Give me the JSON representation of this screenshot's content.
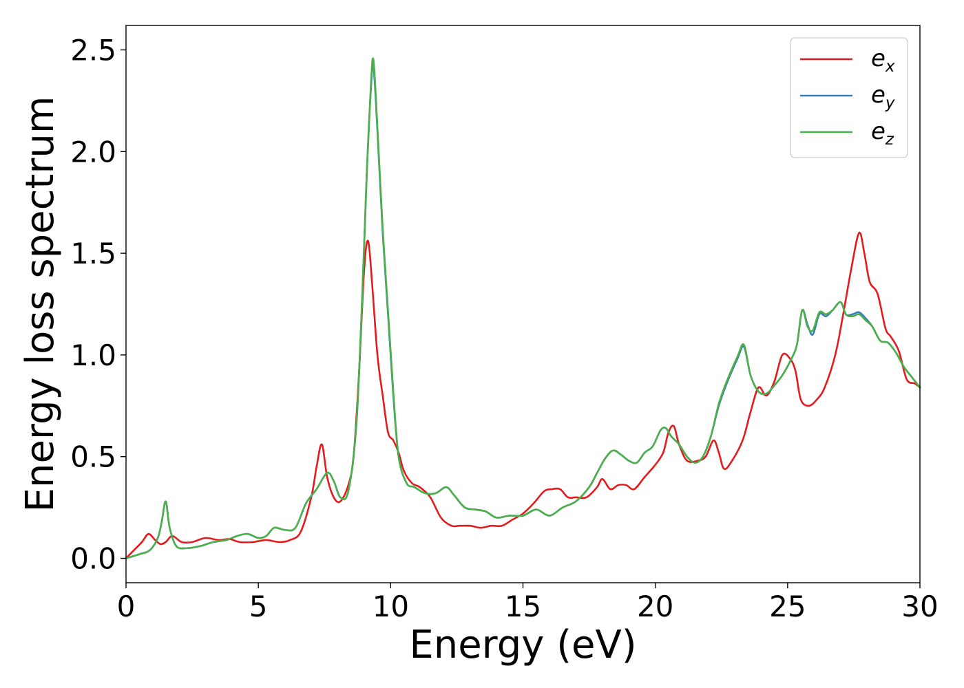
{
  "chart_data": {
    "type": "line",
    "xlabel": "Energy (eV)",
    "ylabel": "Energy loss spectrum",
    "xlim": [
      0,
      30
    ],
    "ylim": [
      -0.12,
      2.62
    ],
    "xticks": [
      "0",
      "5",
      "10",
      "15",
      "20",
      "25",
      "30"
    ],
    "yticks": [
      "0.0",
      "0.5",
      "1.0",
      "1.5",
      "2.0",
      "2.5"
    ],
    "grid": false,
    "legend_position": "top-right",
    "series": [
      {
        "name": "e_x",
        "legend_symbol": "e",
        "legend_subscript": "x",
        "color": "#e41a1c",
        "x": [
          0,
          0.3,
          0.6,
          0.85,
          1.1,
          1.3,
          1.5,
          1.75,
          2.1,
          2.5,
          3.0,
          3.5,
          3.9,
          4.3,
          4.8,
          5.3,
          5.8,
          6.2,
          6.6,
          7.0,
          7.2,
          7.4,
          7.6,
          7.85,
          8.1,
          8.4,
          8.6,
          8.8,
          9.0,
          9.15,
          9.3,
          9.5,
          9.7,
          9.9,
          10.1,
          10.3,
          10.5,
          10.8,
          11.1,
          11.5,
          11.9,
          12.3,
          12.6,
          13.0,
          13.4,
          13.8,
          14.2,
          14.6,
          15.0,
          15.4,
          15.8,
          16.1,
          16.4,
          16.7,
          17.0,
          17.4,
          17.8,
          18.0,
          18.3,
          18.6,
          18.9,
          19.2,
          19.6,
          20.0,
          20.3,
          20.5,
          20.7,
          20.9,
          21.2,
          21.6,
          21.9,
          22.2,
          22.4,
          22.6,
          22.9,
          23.3,
          23.6,
          23.9,
          24.2,
          24.5,
          24.8,
          25.1,
          25.3,
          25.5,
          25.8,
          26.1,
          26.4,
          26.8,
          27.1,
          27.4,
          27.7,
          27.9,
          28.1,
          28.4,
          28.7,
          28.9,
          29.2,
          29.5,
          29.8,
          30.0
        ],
        "y": [
          0.0,
          0.04,
          0.08,
          0.12,
          0.09,
          0.07,
          0.08,
          0.11,
          0.08,
          0.08,
          0.1,
          0.09,
          0.095,
          0.08,
          0.08,
          0.09,
          0.08,
          0.09,
          0.13,
          0.3,
          0.45,
          0.56,
          0.4,
          0.3,
          0.28,
          0.36,
          0.5,
          0.9,
          1.42,
          1.56,
          1.35,
          1.0,
          0.8,
          0.62,
          0.58,
          0.52,
          0.43,
          0.37,
          0.35,
          0.3,
          0.2,
          0.16,
          0.16,
          0.16,
          0.15,
          0.16,
          0.16,
          0.19,
          0.22,
          0.27,
          0.33,
          0.34,
          0.34,
          0.3,
          0.3,
          0.3,
          0.35,
          0.39,
          0.34,
          0.36,
          0.36,
          0.34,
          0.4,
          0.46,
          0.52,
          0.62,
          0.65,
          0.56,
          0.48,
          0.48,
          0.5,
          0.58,
          0.52,
          0.44,
          0.48,
          0.58,
          0.72,
          0.84,
          0.8,
          0.87,
          1.0,
          0.98,
          0.92,
          0.78,
          0.75,
          0.78,
          0.84,
          1.0,
          1.2,
          1.42,
          1.6,
          1.5,
          1.36,
          1.3,
          1.13,
          1.09,
          1.02,
          0.88,
          0.86,
          0.84
        ]
      },
      {
        "name": "e_y",
        "legend_symbol": "e",
        "legend_subscript": "y",
        "color": "#377eb8",
        "x": [
          0,
          0.5,
          0.9,
          1.2,
          1.35,
          1.5,
          1.65,
          1.9,
          2.3,
          2.8,
          3.3,
          3.8,
          4.2,
          4.6,
          5.0,
          5.3,
          5.6,
          6.0,
          6.4,
          6.8,
          7.2,
          7.6,
          7.85,
          8.1,
          8.4,
          8.7,
          8.9,
          9.1,
          9.25,
          9.35,
          9.5,
          9.7,
          9.9,
          10.1,
          10.3,
          10.6,
          10.9,
          11.3,
          11.7,
          12.1,
          12.4,
          12.8,
          13.2,
          13.6,
          14.0,
          14.5,
          15.0,
          15.5,
          16.0,
          16.5,
          17.0,
          17.5,
          17.8,
          18.1,
          18.4,
          18.7,
          19.0,
          19.3,
          19.6,
          19.9,
          20.2,
          20.4,
          20.6,
          20.9,
          21.2,
          21.5,
          21.8,
          22.1,
          22.4,
          22.7,
          23.1,
          23.35,
          23.6,
          23.9,
          24.2,
          24.5,
          24.8,
          25.1,
          25.35,
          25.55,
          25.75,
          25.95,
          26.2,
          26.45,
          26.7,
          27.0,
          27.2,
          27.45,
          27.7,
          27.95,
          28.2,
          28.5,
          28.8,
          29.1,
          29.4,
          29.7,
          30.0
        ],
        "y": [
          0.0,
          0.02,
          0.04,
          0.1,
          0.18,
          0.28,
          0.15,
          0.06,
          0.05,
          0.06,
          0.08,
          0.09,
          0.11,
          0.12,
          0.1,
          0.11,
          0.15,
          0.14,
          0.15,
          0.27,
          0.34,
          0.42,
          0.38,
          0.3,
          0.33,
          0.65,
          1.2,
          1.9,
          2.3,
          2.42,
          2.1,
          1.6,
          1.2,
          0.8,
          0.5,
          0.37,
          0.35,
          0.32,
          0.32,
          0.35,
          0.31,
          0.25,
          0.24,
          0.23,
          0.2,
          0.21,
          0.21,
          0.24,
          0.21,
          0.25,
          0.28,
          0.35,
          0.42,
          0.49,
          0.53,
          0.51,
          0.48,
          0.47,
          0.52,
          0.55,
          0.63,
          0.64,
          0.6,
          0.56,
          0.5,
          0.47,
          0.5,
          0.6,
          0.75,
          0.86,
          0.98,
          1.04,
          0.9,
          0.82,
          0.81,
          0.85,
          0.9,
          0.97,
          1.05,
          1.22,
          1.15,
          1.1,
          1.2,
          1.19,
          1.22,
          1.26,
          1.2,
          1.2,
          1.21,
          1.18,
          1.14,
          1.07,
          1.06,
          1.01,
          0.94,
          0.89,
          0.84
        ]
      },
      {
        "name": "e_z",
        "legend_symbol": "e",
        "legend_subscript": "z",
        "color": "#4daf4a",
        "x": [
          0,
          0.5,
          0.9,
          1.2,
          1.35,
          1.5,
          1.65,
          1.9,
          2.3,
          2.8,
          3.3,
          3.8,
          4.2,
          4.6,
          5.0,
          5.3,
          5.6,
          6.0,
          6.4,
          6.8,
          7.2,
          7.6,
          7.85,
          8.1,
          8.4,
          8.7,
          8.9,
          9.1,
          9.25,
          9.35,
          9.5,
          9.7,
          9.9,
          10.1,
          10.3,
          10.6,
          10.9,
          11.3,
          11.7,
          12.1,
          12.4,
          12.8,
          13.2,
          13.6,
          14.0,
          14.5,
          15.0,
          15.5,
          16.0,
          16.5,
          17.0,
          17.5,
          17.8,
          18.1,
          18.4,
          18.7,
          19.0,
          19.3,
          19.6,
          19.9,
          20.2,
          20.4,
          20.6,
          20.9,
          21.2,
          21.5,
          21.8,
          22.1,
          22.4,
          22.7,
          23.1,
          23.35,
          23.6,
          23.9,
          24.2,
          24.5,
          24.8,
          25.1,
          25.35,
          25.55,
          25.75,
          25.95,
          26.2,
          26.45,
          26.7,
          27.0,
          27.2,
          27.45,
          27.7,
          27.95,
          28.2,
          28.5,
          28.8,
          29.1,
          29.4,
          29.7,
          30.0
        ],
        "y": [
          0.0,
          0.02,
          0.04,
          0.1,
          0.18,
          0.28,
          0.15,
          0.06,
          0.05,
          0.06,
          0.08,
          0.09,
          0.11,
          0.12,
          0.1,
          0.11,
          0.15,
          0.14,
          0.15,
          0.27,
          0.34,
          0.42,
          0.38,
          0.3,
          0.33,
          0.65,
          1.2,
          1.9,
          2.32,
          2.45,
          2.12,
          1.62,
          1.22,
          0.82,
          0.5,
          0.37,
          0.35,
          0.32,
          0.32,
          0.35,
          0.31,
          0.25,
          0.24,
          0.23,
          0.2,
          0.21,
          0.21,
          0.24,
          0.21,
          0.25,
          0.28,
          0.35,
          0.42,
          0.49,
          0.53,
          0.51,
          0.48,
          0.47,
          0.52,
          0.55,
          0.63,
          0.64,
          0.6,
          0.56,
          0.5,
          0.47,
          0.5,
          0.6,
          0.76,
          0.87,
          0.99,
          1.05,
          0.9,
          0.82,
          0.81,
          0.85,
          0.9,
          0.97,
          1.05,
          1.22,
          1.14,
          1.12,
          1.21,
          1.2,
          1.22,
          1.26,
          1.2,
          1.19,
          1.2,
          1.17,
          1.14,
          1.07,
          1.06,
          1.01,
          0.94,
          0.89,
          0.84
        ]
      }
    ]
  }
}
